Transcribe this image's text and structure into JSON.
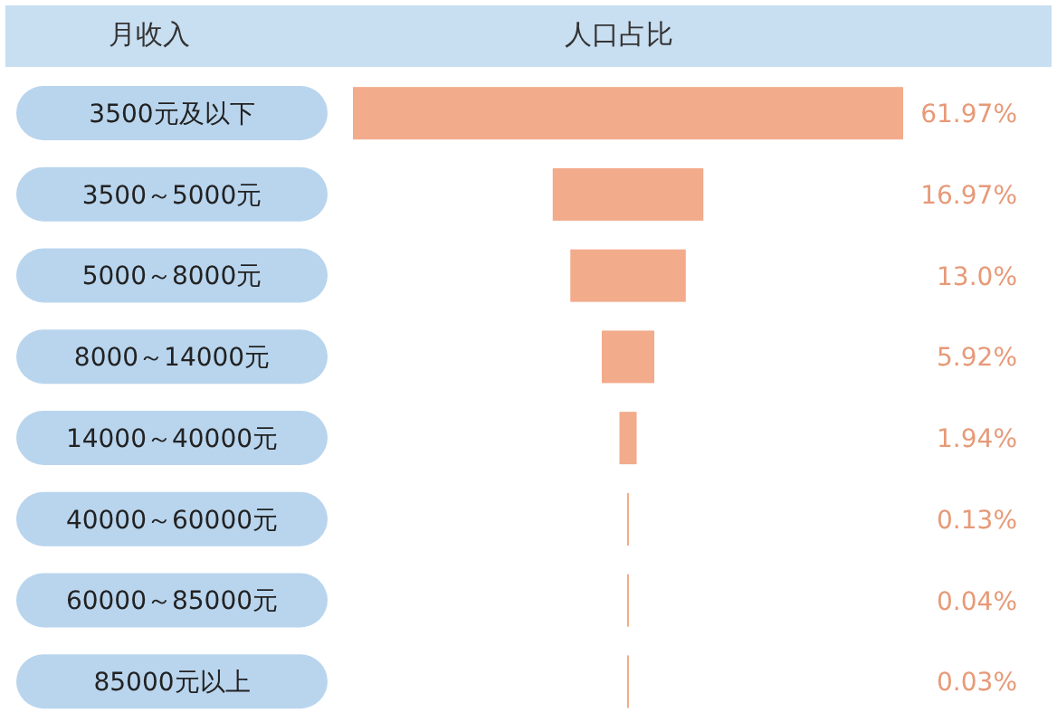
{
  "chart_data": {
    "type": "other",
    "ylabel": "月收入",
    "xlabel": "人口占比",
    "categories": [
      "3500元及以下",
      "3500～5000元",
      "5000～8000元",
      "8000～14000元",
      "14000～40000元",
      "40000～60000元",
      "60000～85000元",
      "85000元以上"
    ],
    "values": [
      61.97,
      16.97,
      13.0,
      5.92,
      1.94,
      0.13,
      0.04,
      0.03
    ],
    "value_labels": [
      "61.97%",
      "16.97%",
      "13.0%",
      "5.92%",
      "1.94%",
      "0.13%",
      "0.04%",
      "0.03%"
    ],
    "color": "#f2ab8b"
  }
}
